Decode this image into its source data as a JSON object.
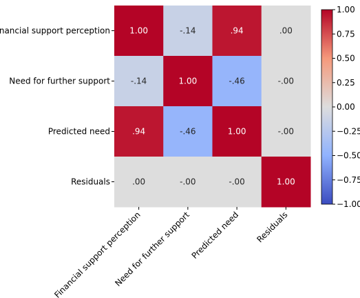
{
  "chart_data": {
    "type": "heatmap",
    "rows": [
      "Financial support perception",
      "Need for further support",
      "Predicted need",
      "Residuals"
    ],
    "columns": [
      "Financial support perception",
      "Need for further support",
      "Predicted need",
      "Residuals"
    ],
    "values": [
      [
        1.0,
        -0.14,
        0.94,
        0.0
      ],
      [
        -0.14,
        1.0,
        -0.46,
        0.0
      ],
      [
        0.94,
        -0.46,
        1.0,
        0.0
      ],
      [
        0.0,
        0.0,
        0.0,
        1.0
      ]
    ],
    "cell_labels": [
      [
        "1.00",
        "-.14",
        ".94",
        ".00"
      ],
      [
        "-.14",
        "1.00",
        "-.46",
        "-.00"
      ],
      [
        ".94",
        "-.46",
        "1.00",
        "-.00"
      ],
      [
        ".00",
        "-.00",
        "-.00",
        "1.00"
      ]
    ],
    "colormap": "coolwarm",
    "colorbar": {
      "range": [
        -1.0,
        1.0
      ],
      "ticks": [
        1.0,
        0.75,
        0.5,
        0.25,
        0.0,
        -0.25,
        -0.5,
        -0.75,
        -1.0
      ],
      "tick_labels": [
        "1.00",
        "0.75",
        "0.50",
        "0.25",
        "0.00",
        "−0.25",
        "−0.50",
        "−0.75",
        "−1.00"
      ]
    },
    "title": "",
    "xlabel": "",
    "ylabel": "",
    "grid": false
  }
}
